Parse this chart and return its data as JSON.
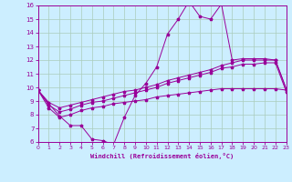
{
  "xlabel": "Windchill (Refroidissement éolien,°C)",
  "bg_color": "#cceeff",
  "line_color": "#990099",
  "grid_color": "#aaccbb",
  "x_min": 0,
  "x_max": 23,
  "y_min": 6,
  "y_max": 16,
  "x_ticks": [
    0,
    1,
    2,
    3,
    4,
    5,
    6,
    7,
    8,
    9,
    10,
    11,
    12,
    13,
    14,
    15,
    16,
    17,
    18,
    19,
    20,
    21,
    22,
    23
  ],
  "y_ticks": [
    6,
    7,
    8,
    9,
    10,
    11,
    12,
    13,
    14,
    15,
    16
  ],
  "line1_y": [
    9.8,
    8.8,
    7.9,
    7.2,
    7.2,
    6.2,
    6.1,
    5.8,
    7.8,
    9.4,
    10.3,
    11.5,
    13.9,
    15.0,
    16.3,
    15.2,
    15.0,
    16.1,
    12.0,
    12.1,
    12.1,
    12.1,
    12.0,
    9.9
  ],
  "line2_y": [
    9.8,
    8.9,
    8.5,
    8.7,
    8.9,
    9.1,
    9.3,
    9.5,
    9.7,
    9.8,
    10.0,
    10.2,
    10.5,
    10.7,
    10.9,
    11.1,
    11.3,
    11.6,
    11.8,
    12.0,
    12.0,
    12.0,
    12.0,
    9.9
  ],
  "line3_y": [
    9.8,
    8.7,
    8.2,
    8.4,
    8.7,
    8.9,
    9.0,
    9.2,
    9.4,
    9.6,
    9.8,
    10.0,
    10.3,
    10.5,
    10.7,
    10.9,
    11.1,
    11.4,
    11.5,
    11.7,
    11.7,
    11.8,
    11.8,
    9.7
  ],
  "line4_y": [
    9.8,
    8.5,
    7.8,
    8.0,
    8.3,
    8.5,
    8.6,
    8.8,
    8.9,
    9.0,
    9.1,
    9.3,
    9.4,
    9.5,
    9.6,
    9.7,
    9.8,
    9.9,
    9.9,
    9.9,
    9.9,
    9.9,
    9.9,
    9.8
  ]
}
